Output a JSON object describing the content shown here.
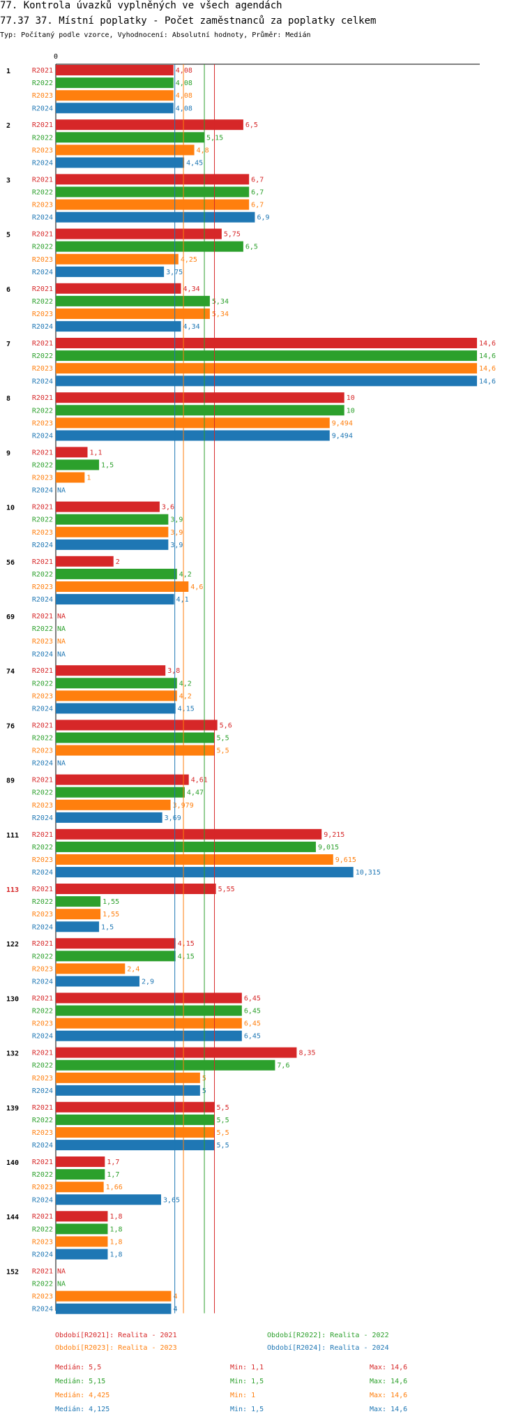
{
  "title1": "77. Kontrola úvazků vyplněných ve všech agendách",
  "title2": "77.37 37. Místní poplatky - Počet zaměstnanců za poplatky celkem",
  "subtitle": "Typ: Počítaný podle vzorce, Vyhodnocení: Absolutní hodnoty, Průměr: Medián",
  "colors": {
    "R2021": "#d62728",
    "R2022": "#2ca02c",
    "R2023": "#ff7f0e",
    "R2024": "#1f77b4",
    "highlight": "#d62728"
  },
  "chart_data": {
    "type": "bar",
    "orientation": "horizontal",
    "xlim": [
      0,
      14.6
    ],
    "x_tick_labels": [
      "0"
    ],
    "series_names": [
      "R2021",
      "R2022",
      "R2023",
      "R2024"
    ],
    "groups": [
      {
        "id": "1",
        "highlight": false,
        "bars": [
          {
            "s": "R2021",
            "v": 4.08,
            "label": "4,08"
          },
          {
            "s": "R2022",
            "v": 4.08,
            "label": "4,08"
          },
          {
            "s": "R2023",
            "v": 4.08,
            "label": "4,08"
          },
          {
            "s": "R2024",
            "v": 4.08,
            "label": "4,08"
          }
        ]
      },
      {
        "id": "2",
        "highlight": false,
        "bars": [
          {
            "s": "R2021",
            "v": 6.5,
            "label": "6,5"
          },
          {
            "s": "R2022",
            "v": 5.15,
            "label": "5,15"
          },
          {
            "s": "R2023",
            "v": 4.8,
            "label": "4,8"
          },
          {
            "s": "R2024",
            "v": 4.45,
            "label": "4,45"
          }
        ]
      },
      {
        "id": "3",
        "highlight": false,
        "bars": [
          {
            "s": "R2021",
            "v": 6.7,
            "label": "6,7"
          },
          {
            "s": "R2022",
            "v": 6.7,
            "label": "6,7"
          },
          {
            "s": "R2023",
            "v": 6.7,
            "label": "6,7"
          },
          {
            "s": "R2024",
            "v": 6.9,
            "label": "6,9"
          }
        ]
      },
      {
        "id": "5",
        "highlight": false,
        "bars": [
          {
            "s": "R2021",
            "v": 5.75,
            "label": "5,75"
          },
          {
            "s": "R2022",
            "v": 6.5,
            "label": "6,5"
          },
          {
            "s": "R2023",
            "v": 4.25,
            "label": "4,25"
          },
          {
            "s": "R2024",
            "v": 3.75,
            "label": "3,75"
          }
        ]
      },
      {
        "id": "6",
        "highlight": false,
        "bars": [
          {
            "s": "R2021",
            "v": 4.34,
            "label": "4,34"
          },
          {
            "s": "R2022",
            "v": 5.34,
            "label": "5,34"
          },
          {
            "s": "R2023",
            "v": 5.34,
            "label": "5,34"
          },
          {
            "s": "R2024",
            "v": 4.34,
            "label": "4,34"
          }
        ]
      },
      {
        "id": "7",
        "highlight": false,
        "bars": [
          {
            "s": "R2021",
            "v": 14.6,
            "label": "14,6"
          },
          {
            "s": "R2022",
            "v": 14.6,
            "label": "14,6"
          },
          {
            "s": "R2023",
            "v": 14.6,
            "label": "14,6"
          },
          {
            "s": "R2024",
            "v": 14.6,
            "label": "14,6"
          }
        ]
      },
      {
        "id": "8",
        "highlight": false,
        "bars": [
          {
            "s": "R2021",
            "v": 10,
            "label": "10"
          },
          {
            "s": "R2022",
            "v": 10,
            "label": "10"
          },
          {
            "s": "R2023",
            "v": 9.494,
            "label": "9,494"
          },
          {
            "s": "R2024",
            "v": 9.494,
            "label": "9,494"
          }
        ]
      },
      {
        "id": "9",
        "highlight": false,
        "bars": [
          {
            "s": "R2021",
            "v": 1.1,
            "label": "1,1"
          },
          {
            "s": "R2022",
            "v": 1.5,
            "label": "1,5"
          },
          {
            "s": "R2023",
            "v": 1,
            "label": "1"
          },
          {
            "s": "R2024",
            "v": null,
            "label": "NA"
          }
        ]
      },
      {
        "id": "10",
        "highlight": false,
        "bars": [
          {
            "s": "R2021",
            "v": 3.6,
            "label": "3,6"
          },
          {
            "s": "R2022",
            "v": 3.9,
            "label": "3,9"
          },
          {
            "s": "R2023",
            "v": 3.9,
            "label": "3,9"
          },
          {
            "s": "R2024",
            "v": 3.9,
            "label": "3,9"
          }
        ]
      },
      {
        "id": "56",
        "highlight": false,
        "bars": [
          {
            "s": "R2021",
            "v": 2,
            "label": "2"
          },
          {
            "s": "R2022",
            "v": 4.2,
            "label": "4,2"
          },
          {
            "s": "R2023",
            "v": 4.6,
            "label": "4,6"
          },
          {
            "s": "R2024",
            "v": 4.1,
            "label": "4,1"
          }
        ]
      },
      {
        "id": "69",
        "highlight": false,
        "bars": [
          {
            "s": "R2021",
            "v": null,
            "label": "NA"
          },
          {
            "s": "R2022",
            "v": null,
            "label": "NA"
          },
          {
            "s": "R2023",
            "v": null,
            "label": "NA"
          },
          {
            "s": "R2024",
            "v": null,
            "label": "NA"
          }
        ]
      },
      {
        "id": "74",
        "highlight": false,
        "bars": [
          {
            "s": "R2021",
            "v": 3.8,
            "label": "3,8"
          },
          {
            "s": "R2022",
            "v": 4.2,
            "label": "4,2"
          },
          {
            "s": "R2023",
            "v": 4.2,
            "label": "4,2"
          },
          {
            "s": "R2024",
            "v": 4.15,
            "label": "4,15"
          }
        ]
      },
      {
        "id": "76",
        "highlight": false,
        "bars": [
          {
            "s": "R2021",
            "v": 5.6,
            "label": "5,6"
          },
          {
            "s": "R2022",
            "v": 5.5,
            "label": "5,5"
          },
          {
            "s": "R2023",
            "v": 5.5,
            "label": "5,5"
          },
          {
            "s": "R2024",
            "v": null,
            "label": "NA"
          }
        ]
      },
      {
        "id": "89",
        "highlight": false,
        "bars": [
          {
            "s": "R2021",
            "v": 4.61,
            "label": "4,61"
          },
          {
            "s": "R2022",
            "v": 4.47,
            "label": "4,47"
          },
          {
            "s": "R2023",
            "v": 3.979,
            "label": "3,979"
          },
          {
            "s": "R2024",
            "v": 3.69,
            "label": "3,69"
          }
        ]
      },
      {
        "id": "111",
        "highlight": false,
        "bars": [
          {
            "s": "R2021",
            "v": 9.215,
            "label": "9,215"
          },
          {
            "s": "R2022",
            "v": 9.015,
            "label": "9,015"
          },
          {
            "s": "R2023",
            "v": 9.615,
            "label": "9,615"
          },
          {
            "s": "R2024",
            "v": 10.315,
            "label": "10,315"
          }
        ]
      },
      {
        "id": "113",
        "highlight": true,
        "bars": [
          {
            "s": "R2021",
            "v": 5.55,
            "label": "5,55"
          },
          {
            "s": "R2022",
            "v": 1.55,
            "label": "1,55"
          },
          {
            "s": "R2023",
            "v": 1.55,
            "label": "1,55"
          },
          {
            "s": "R2024",
            "v": 1.5,
            "label": "1,5"
          }
        ]
      },
      {
        "id": "122",
        "highlight": false,
        "bars": [
          {
            "s": "R2021",
            "v": 4.15,
            "label": "4,15"
          },
          {
            "s": "R2022",
            "v": 4.15,
            "label": "4,15"
          },
          {
            "s": "R2023",
            "v": 2.4,
            "label": "2,4"
          },
          {
            "s": "R2024",
            "v": 2.9,
            "label": "2,9"
          }
        ]
      },
      {
        "id": "130",
        "highlight": false,
        "bars": [
          {
            "s": "R2021",
            "v": 6.45,
            "label": "6,45"
          },
          {
            "s": "R2022",
            "v": 6.45,
            "label": "6,45"
          },
          {
            "s": "R2023",
            "v": 6.45,
            "label": "6,45"
          },
          {
            "s": "R2024",
            "v": 6.45,
            "label": "6,45"
          }
        ]
      },
      {
        "id": "132",
        "highlight": false,
        "bars": [
          {
            "s": "R2021",
            "v": 8.35,
            "label": "8,35"
          },
          {
            "s": "R2022",
            "v": 7.6,
            "label": "7,6"
          },
          {
            "s": "R2023",
            "v": 5,
            "label": "5"
          },
          {
            "s": "R2024",
            "v": 5,
            "label": "5"
          }
        ]
      },
      {
        "id": "139",
        "highlight": false,
        "bars": [
          {
            "s": "R2021",
            "v": 5.5,
            "label": "5,5"
          },
          {
            "s": "R2022",
            "v": 5.5,
            "label": "5,5"
          },
          {
            "s": "R2023",
            "v": 5.5,
            "label": "5,5"
          },
          {
            "s": "R2024",
            "v": 5.5,
            "label": "5,5"
          }
        ]
      },
      {
        "id": "140",
        "highlight": false,
        "bars": [
          {
            "s": "R2021",
            "v": 1.7,
            "label": "1,7"
          },
          {
            "s": "R2022",
            "v": 1.7,
            "label": "1,7"
          },
          {
            "s": "R2023",
            "v": 1.66,
            "label": "1,66"
          },
          {
            "s": "R2024",
            "v": 3.65,
            "label": "3,65"
          }
        ]
      },
      {
        "id": "144",
        "highlight": false,
        "bars": [
          {
            "s": "R2021",
            "v": 1.8,
            "label": "1,8"
          },
          {
            "s": "R2022",
            "v": 1.8,
            "label": "1,8"
          },
          {
            "s": "R2023",
            "v": 1.8,
            "label": "1,8"
          },
          {
            "s": "R2024",
            "v": 1.8,
            "label": "1,8"
          }
        ]
      },
      {
        "id": "152",
        "highlight": false,
        "bars": [
          {
            "s": "R2021",
            "v": null,
            "label": "NA"
          },
          {
            "s": "R2022",
            "v": null,
            "label": "NA"
          },
          {
            "s": "R2023",
            "v": 4,
            "label": "4"
          },
          {
            "s": "R2024",
            "v": 4,
            "label": "4"
          }
        ]
      }
    ],
    "median_lines": [
      {
        "s": "R2021",
        "v": 5.5
      },
      {
        "s": "R2022",
        "v": 5.15
      },
      {
        "s": "R2023",
        "v": 4.425
      },
      {
        "s": "R2024",
        "v": 4.125
      }
    ],
    "legend": [
      {
        "s": "R2021",
        "text": "Období[R2021]: Realita - 2021"
      },
      {
        "s": "R2022",
        "text": "Období[R2022]: Realita - 2022"
      },
      {
        "s": "R2023",
        "text": "Období[R2023]: Realita - 2023"
      },
      {
        "s": "R2024",
        "text": "Období[R2024]: Realita - 2024"
      }
    ],
    "stats": [
      {
        "s": "R2021",
        "median": "Medián: 5,5",
        "min": "Min: 1,1",
        "max": "Max: 14,6"
      },
      {
        "s": "R2022",
        "median": "Medián: 5,15",
        "min": "Min: 1,5",
        "max": "Max: 14,6"
      },
      {
        "s": "R2023",
        "median": "Medián: 4,425",
        "min": "Min: 1",
        "max": "Max: 14,6"
      },
      {
        "s": "R2024",
        "median": "Medián: 4,125",
        "min": "Min: 1,5",
        "max": "Max: 14,6"
      }
    ]
  }
}
